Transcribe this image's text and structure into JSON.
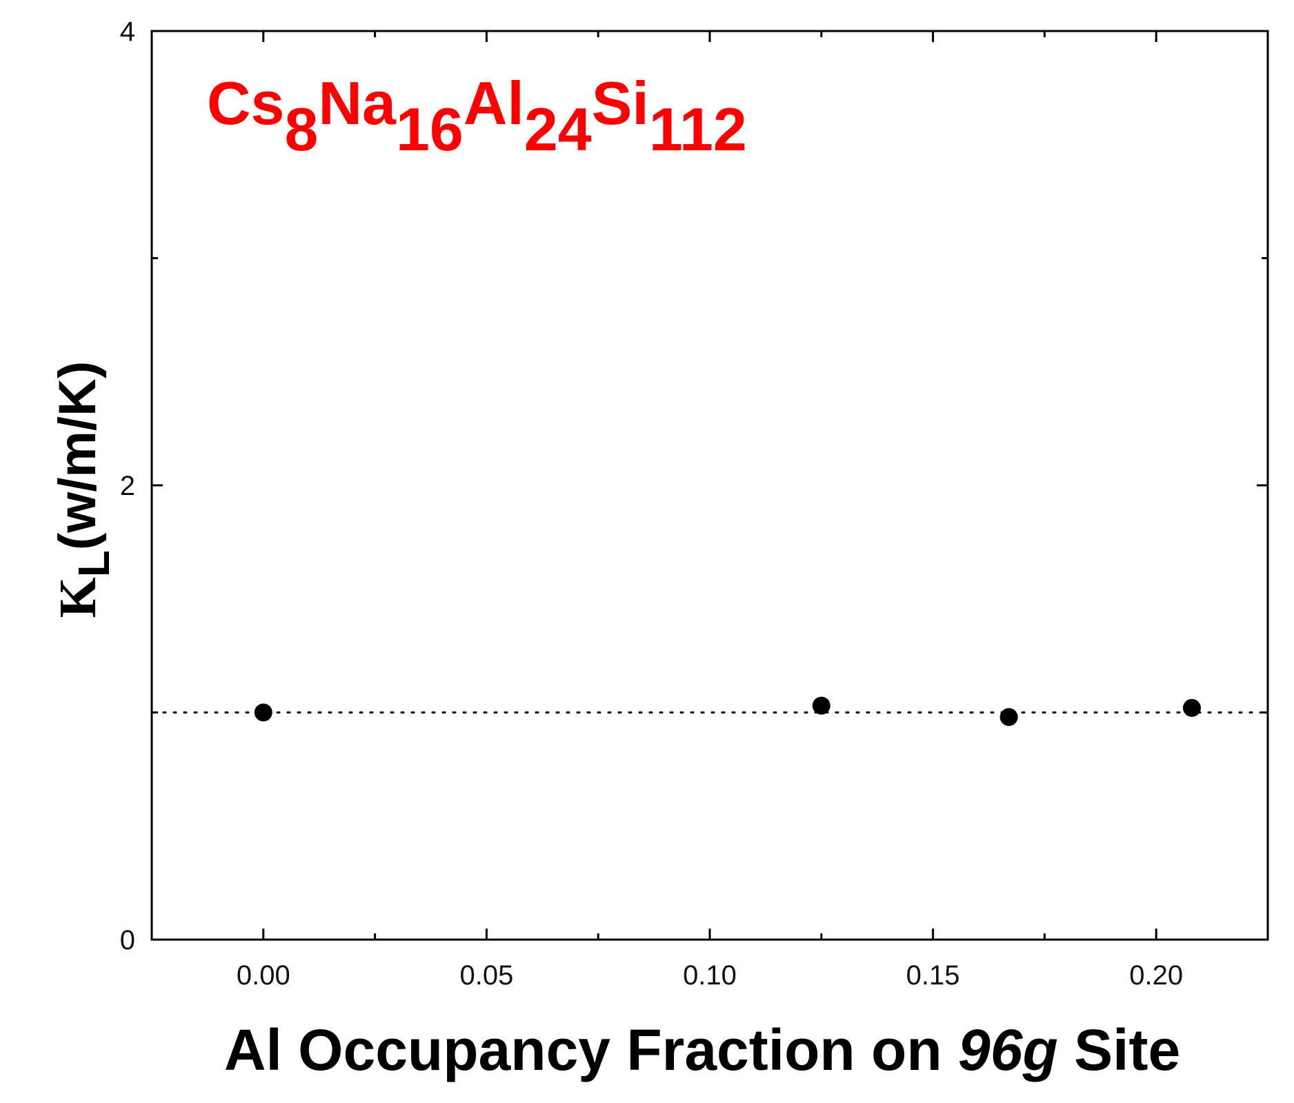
{
  "chart_data": {
    "type": "scatter",
    "title": {
      "parts": [
        {
          "text": "Cs",
          "sub": false
        },
        {
          "text": "8",
          "sub": true
        },
        {
          "text": "Na",
          "sub": false
        },
        {
          "text": "16",
          "sub": true
        },
        {
          "text": "Al",
          "sub": false
        },
        {
          "text": "24",
          "sub": true
        },
        {
          "text": "Si",
          "sub": false
        },
        {
          "text": "112",
          "sub": true
        }
      ],
      "color": "#ff0000"
    },
    "xlabel": {
      "pre": "Al Occupancy Fraction on ",
      "italic": "96g",
      "post": " Site"
    },
    "ylabel": {
      "main": "K",
      "sub": "L",
      "rest": "(w/m/K)"
    },
    "xlim": [
      -0.025,
      0.225
    ],
    "ylim": [
      0,
      4
    ],
    "x_ticks": [
      0.0,
      0.05,
      0.1,
      0.15,
      0.2
    ],
    "x_tick_labels": [
      "0.00",
      "0.05",
      "0.10",
      "0.15",
      "0.20"
    ],
    "y_ticks": [
      0,
      2,
      4
    ],
    "y_tick_labels": [
      "0",
      "2",
      "4"
    ],
    "series": [
      {
        "marker": "circle",
        "color": "#000000",
        "points": [
          {
            "x": 0.0,
            "y": 1.0
          },
          {
            "x": 0.125,
            "y": 1.03
          },
          {
            "x": 0.167,
            "y": 0.98
          },
          {
            "x": 0.208,
            "y": 1.02
          }
        ]
      }
    ],
    "reference_line": {
      "y": 1.0,
      "style": "dotted",
      "color": "#000000"
    },
    "grid": false,
    "legend": "none"
  }
}
